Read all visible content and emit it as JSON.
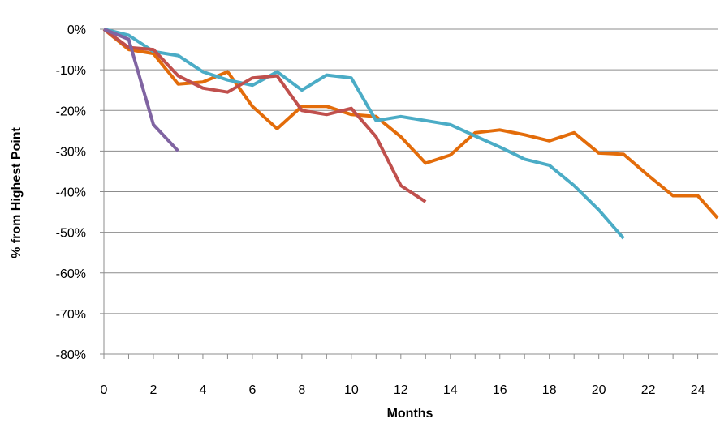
{
  "chart_data": {
    "type": "line",
    "title": "",
    "xlabel": "Months",
    "ylabel": "% from Highest Point",
    "xlim": [
      0,
      24.8
    ],
    "ylim": [
      -80,
      0
    ],
    "x_ticks": [
      0,
      2,
      4,
      6,
      8,
      10,
      12,
      14,
      16,
      18,
      20,
      22,
      24
    ],
    "y_ticks": [
      0,
      -10,
      -20,
      -30,
      -40,
      -50,
      -60,
      -70,
      -80
    ],
    "y_tick_format": "percent",
    "grid": "horizontal",
    "legend": "none",
    "series": [
      {
        "color": "#E36C0A",
        "x": [
          0,
          1,
          2,
          3,
          4,
          5,
          6,
          7,
          8,
          9,
          10,
          11,
          12,
          13,
          14,
          15,
          16,
          17,
          18,
          19,
          20,
          21,
          22,
          23,
          24,
          24.8
        ],
        "y": [
          0,
          -5,
          -6,
          -13.5,
          -13,
          -10.5,
          -19,
          -24.5,
          -19,
          -19,
          -21,
          -21.5,
          -26.5,
          -33,
          -31,
          -25.5,
          -24.8,
          -26,
          -27.5,
          -25.5,
          -30.5,
          -30.8,
          -36,
          -41,
          -41,
          -46.5
        ]
      },
      {
        "color": "#4BACC6",
        "x": [
          0,
          1,
          2,
          3,
          4,
          5,
          6,
          7,
          8,
          9,
          10,
          11,
          12,
          13,
          14,
          15,
          16,
          17,
          18,
          19,
          20,
          21
        ],
        "y": [
          0,
          -1.5,
          -5.5,
          -6.5,
          -10.5,
          -12.5,
          -13.8,
          -10.5,
          -15,
          -11.3,
          -12,
          -22.5,
          -21.5,
          -22.5,
          -23.5,
          -26.3,
          -29,
          -32,
          -33.5,
          -38.5,
          -44.5,
          -51.5
        ]
      },
      {
        "color": "#C0504D",
        "x": [
          0,
          1,
          2,
          3,
          4,
          5,
          6,
          7,
          8,
          9,
          10,
          11,
          12,
          13
        ],
        "y": [
          0,
          -4.5,
          -5,
          -11.5,
          -14.5,
          -15.5,
          -12,
          -11.5,
          -20,
          -21,
          -19.5,
          -26.5,
          -38.5,
          -42.5
        ]
      },
      {
        "color": "#8064A2",
        "x": [
          0,
          1,
          2,
          3
        ],
        "y": [
          0,
          -2.5,
          -23.5,
          -30
        ]
      }
    ]
  }
}
